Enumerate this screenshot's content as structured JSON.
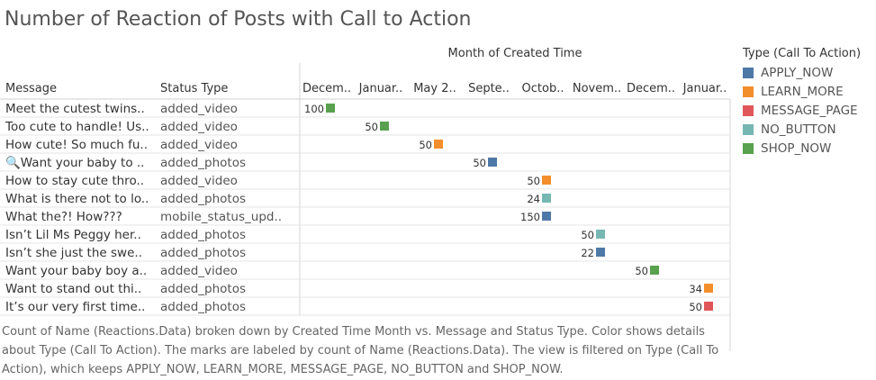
{
  "chart_data": {
    "type": "table",
    "title": "Number of Reaction of Posts with Call to Action",
    "column_group_header": "Month of Created Time",
    "row_headers": [
      "Message",
      "Status Type"
    ],
    "months": [
      "Decem..",
      "Januar..",
      "May 2..",
      "Septe..",
      "Octob..",
      "Novem..",
      "Decem..",
      "Januar.."
    ],
    "rows": [
      {
        "message": "Meet the cutest twins..",
        "status": "added_video",
        "month_index": 0,
        "count": 100,
        "type": "SHOP_NOW"
      },
      {
        "message": "Too cute to handle! Us..",
        "status": "added_video",
        "month_index": 1,
        "count": 50,
        "type": "SHOP_NOW"
      },
      {
        "message": "How cute! So much fu..",
        "status": "added_video",
        "month_index": 2,
        "count": 50,
        "type": "LEARN_MORE"
      },
      {
        "message": "🔍Want your baby to ..",
        "status": "added_photos",
        "month_index": 3,
        "count": 50,
        "type": "APPLY_NOW"
      },
      {
        "message": "How to stay cute thro..",
        "status": "added_video",
        "month_index": 4,
        "count": 50,
        "type": "LEARN_MORE"
      },
      {
        "message": "What is there not to lo..",
        "status": "added_photos",
        "month_index": 4,
        "count": 24,
        "type": "NO_BUTTON"
      },
      {
        "message": "What the?! How???",
        "status": "mobile_status_upd..",
        "month_index": 4,
        "count": 150,
        "type": "APPLY_NOW"
      },
      {
        "message": "Isn’t Lil Ms Peggy her..",
        "status": "added_photos",
        "month_index": 5,
        "count": 50,
        "type": "NO_BUTTON"
      },
      {
        "message": "Isn’t she just the swe..",
        "status": "added_photos",
        "month_index": 5,
        "count": 22,
        "type": "APPLY_NOW"
      },
      {
        "message": "Want your baby boy a..",
        "status": "added_video",
        "month_index": 6,
        "count": 50,
        "type": "SHOP_NOW"
      },
      {
        "message": "Want to stand out thi..",
        "status": "added_photos",
        "month_index": 7,
        "count": 34,
        "type": "LEARN_MORE"
      },
      {
        "message": "It’s our very first time..",
        "status": "added_photos",
        "month_index": 7,
        "count": 50,
        "type": "MESSAGE_PAGE"
      }
    ],
    "legend": {
      "title": "Type (Call To Action)",
      "placement": "right",
      "items": [
        {
          "label": "APPLY_NOW",
          "color": "#4e79a7"
        },
        {
          "label": "LEARN_MORE",
          "color": "#f28e2b"
        },
        {
          "label": "MESSAGE_PAGE",
          "color": "#e15759"
        },
        {
          "label": "NO_BUTTON",
          "color": "#76b7b2"
        },
        {
          "label": "SHOP_NOW",
          "color": "#59a14f"
        }
      ]
    },
    "caption": "Count of Name (Reactions.Data) broken down by Created Time Month vs. Message and Status Type.  Color shows details about Type (Call To Action).  The marks are labeled by count of Name (Reactions.Data). The view is filtered on Type (Call To Action), which keeps APPLY_NOW, LEARN_MORE, MESSAGE_PAGE, NO_BUTTON and SHOP_NOW."
  }
}
